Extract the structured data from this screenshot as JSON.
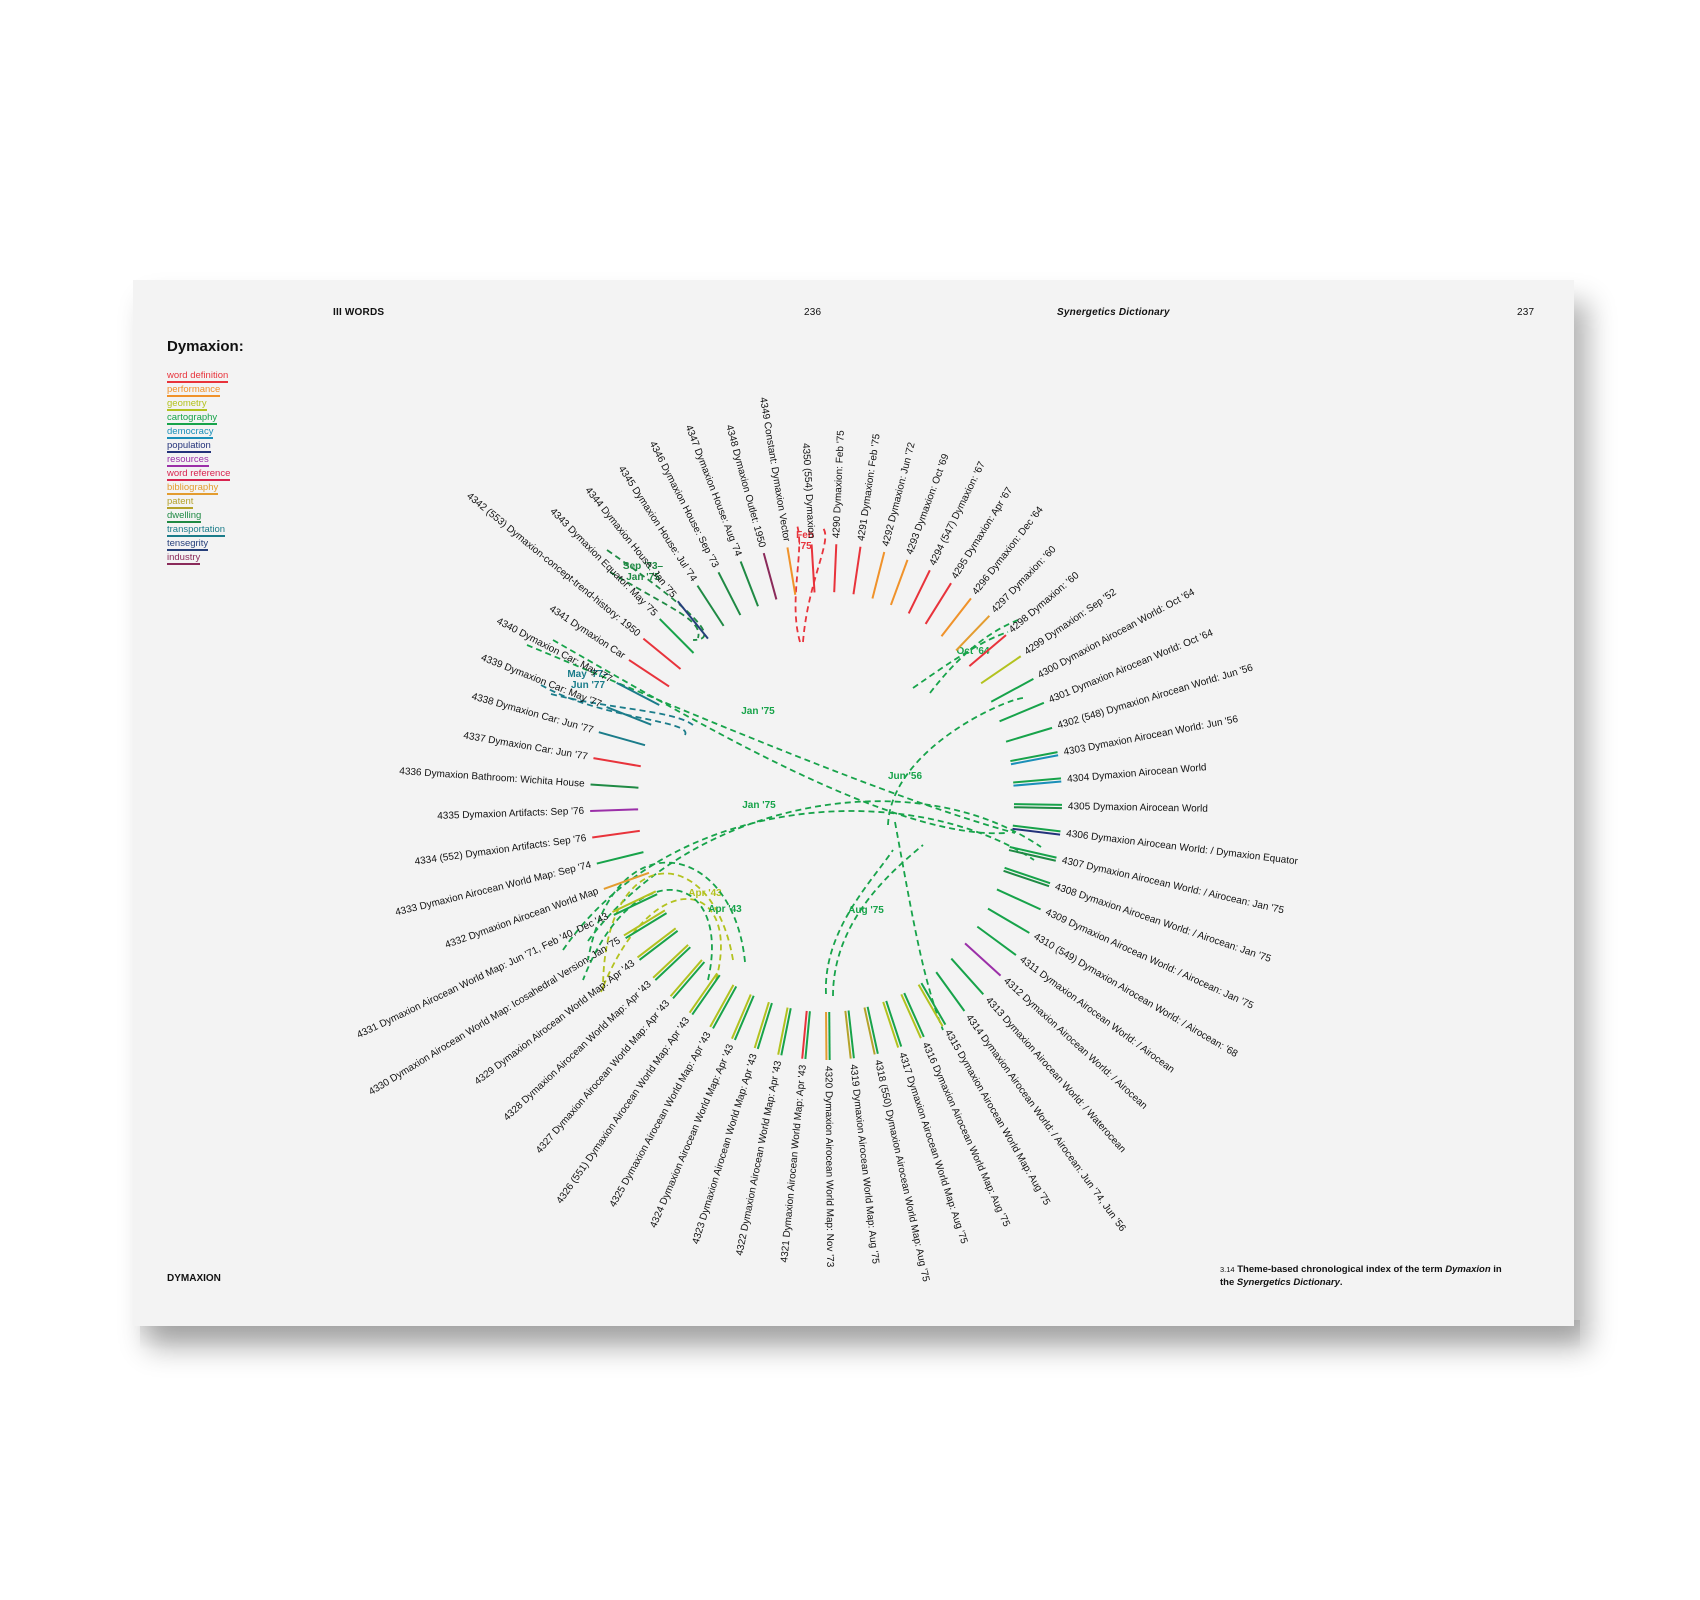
{
  "header": {
    "section": "III  WORDS",
    "left_page_number": "236",
    "book_title": "Synergetics Dictionary",
    "right_page_number": "237"
  },
  "title": "Dymaxion:",
  "legend": [
    {
      "label": "word definition",
      "color": "#e8333b"
    },
    {
      "label": "performance",
      "color": "#f0922a"
    },
    {
      "label": "geometry",
      "color": "#b3c21f"
    },
    {
      "label": "cartography",
      "color": "#17a34a"
    },
    {
      "label": "democracy",
      "color": "#1a8fb8"
    },
    {
      "label": "population",
      "color": "#23327a"
    },
    {
      "label": "resources",
      "color": "#9b2fa8"
    },
    {
      "label": "word reference",
      "color": "#d8244f"
    },
    {
      "label": "bibliography",
      "color": "#e39c2f"
    },
    {
      "label": "patent",
      "color": "#b5a22a"
    },
    {
      "label": "dwelling",
      "color": "#1f8a44"
    },
    {
      "label": "transportation",
      "color": "#1b7c8a"
    },
    {
      "label": "tensegrity",
      "color": "#263f7a"
    },
    {
      "label": "industry",
      "color": "#8a2a5a"
    }
  ],
  "footer": {
    "running_title": "DYMAXION",
    "caption_number": "3.14",
    "caption_pre": "Theme-based chronological index of the term ",
    "caption_term": "Dymaxion",
    "caption_mid": " in the ",
    "caption_book": "Synergetics Dictionary",
    "caption_end": "."
  },
  "entries": [
    {
      "label": "4290  Dymaxion: Feb '75",
      "colors": [
        "#e8333b"
      ]
    },
    {
      "label": "4291  Dymaxion: Feb '75",
      "colors": [
        "#e8333b"
      ]
    },
    {
      "label": "4292  Dymaxion: Jun '72",
      "colors": [
        "#f0922a"
      ]
    },
    {
      "label": "4293  Dymaxion: Oct '69",
      "colors": [
        "#f0922a"
      ]
    },
    {
      "label": "4294  (547) Dymaxion: '67",
      "colors": [
        "#e8333b"
      ]
    },
    {
      "label": "4295  Dymaxion: Apr '67",
      "colors": [
        "#e8333b"
      ]
    },
    {
      "label": "4296  Dymaxion: Dec '64",
      "colors": [
        "#f0922a"
      ]
    },
    {
      "label": "4297  Dymaxion: '60",
      "colors": [
        "#e39c2f"
      ]
    },
    {
      "label": "4298  Dymaxion: '60",
      "colors": [
        "#e8333b"
      ]
    },
    {
      "label": "4299  Dymaxion: Sep '52",
      "colors": [
        "#b3c21f"
      ]
    },
    {
      "label": "4300  Dymaxion Airocean World: Oct '64",
      "colors": [
        "#17a34a"
      ]
    },
    {
      "label": "4301  Dymaxion Airocean World: Oct '64",
      "colors": [
        "#17a34a"
      ]
    },
    {
      "label": "4302  (548) Dymaxion Airocean World: Jun '56",
      "colors": [
        "#17a34a"
      ]
    },
    {
      "label": "4303  Dymaxion Airocean World: Jun '56",
      "colors": [
        "#17a34a",
        "#1a8fb8"
      ]
    },
    {
      "label": "4304  Dymaxion Airocean World",
      "colors": [
        "#17a34a",
        "#1a8fb8"
      ]
    },
    {
      "label": "4305  Dymaxion Airocean World",
      "colors": [
        "#17a34a",
        "#1f8a44"
      ]
    },
    {
      "label": "4306  Dymaxion Airocean World: / Dymaxion Equator",
      "colors": [
        "#17a34a",
        "#23327a"
      ]
    },
    {
      "label": "4307  Dymaxion Airocean World: / Airocean: Jan '75",
      "colors": [
        "#17a34a",
        "#1f8a44"
      ]
    },
    {
      "label": "4308  Dymaxion Airocean World: / Airocean: Jan '75",
      "colors": [
        "#17a34a",
        "#1f8a44"
      ]
    },
    {
      "label": "4309  Dymaxion Airocean World: / Airocean: Jan '75",
      "colors": [
        "#17a34a"
      ]
    },
    {
      "label": "4310  (549) Dymaxion Airocean World: / Airocean: '68",
      "colors": [
        "#17a34a"
      ]
    },
    {
      "label": "4311  Dymaxion Airocean World: / Airocean",
      "colors": [
        "#17a34a"
      ]
    },
    {
      "label": "4312  Dymaxion Airocean World: / Airocean",
      "colors": [
        "#9b2fa8"
      ]
    },
    {
      "label": "4313  Dymaxion Airocean World: / Waterocean",
      "colors": [
        "#17a34a"
      ]
    },
    {
      "label": "4314  Dymaxion Airocean World: / Airocean: Jun '74, Jun '56",
      "colors": [
        "#17a34a"
      ]
    },
    {
      "label": "4315  Dymaxion Airocean World Map: Aug '75",
      "colors": [
        "#17a34a",
        "#b3c21f"
      ]
    },
    {
      "label": "4316  Dymaxion Airocean World Map:  Aug '75",
      "colors": [
        "#17a34a",
        "#b3c21f"
      ]
    },
    {
      "label": "4317  Dymaxion Airocean World Map: Aug '75",
      "colors": [
        "#17a34a",
        "#b3c21f"
      ]
    },
    {
      "label": "4318  (550) Dymaxion Airocean World Map: Aug '75",
      "colors": [
        "#17a34a",
        "#b5a22a"
      ]
    },
    {
      "label": "4319  Dymaxion Airocean World Map: Aug '75",
      "colors": [
        "#17a34a",
        "#b5a22a"
      ]
    },
    {
      "label": "4320  Dymaxion Airocean World Map: Nov '73",
      "colors": [
        "#17a34a",
        "#e39c2f"
      ]
    },
    {
      "label": "4321  Dymaxion Airocean World Map: Apr '43",
      "colors": [
        "#17a34a",
        "#e8333b"
      ]
    },
    {
      "label": "4322  Dymaxion Airocean World Map: Apr '43",
      "colors": [
        "#17a34a",
        "#b3c21f"
      ]
    },
    {
      "label": "4323  Dymaxion Airocean World Map: Apr '43",
      "colors": [
        "#17a34a",
        "#b3c21f"
      ]
    },
    {
      "label": "4324  Dymaxion Airocean World Map: Apr '43",
      "colors": [
        "#17a34a",
        "#b3c21f"
      ]
    },
    {
      "label": "4325  Dymaxion Airocean World Map: Apr '43",
      "colors": [
        "#17a34a",
        "#b3c21f"
      ]
    },
    {
      "label": "4326  (551) Dymaxion Airocean World Map: Apr '43",
      "colors": [
        "#17a34a",
        "#b3c21f"
      ]
    },
    {
      "label": "4327  Dymaxion Airocean World Map: Apr '43",
      "colors": [
        "#17a34a",
        "#b3c21f"
      ]
    },
    {
      "label": "4328  Dymaxion Airocean World Map: Apr '43",
      "colors": [
        "#17a34a",
        "#b3c21f"
      ]
    },
    {
      "label": "4329  Dymaxion Airocean World Map: Apr '43",
      "colors": [
        "#17a34a",
        "#b3c21f"
      ]
    },
    {
      "label": "4330  Dymaxion Airocean World Map: Icosahedral Version: Jan '75",
      "colors": [
        "#17a34a",
        "#b3c21f"
      ]
    },
    {
      "label": "4331  Dymaxion Airocean World Map: Jun '71, Feb '40, Dec '43",
      "colors": [
        "#17a34a",
        "#b3c21f"
      ]
    },
    {
      "label": "4332  Dymaxion Airocean World Map",
      "colors": [
        "#e39c2f"
      ]
    },
    {
      "label": "4333  Dymaxion Airocean World Map: Sep '74",
      "colors": [
        "#17a34a"
      ]
    },
    {
      "label": "4334  (552) Dymaxion Artifacts: Sep '76",
      "colors": [
        "#e8333b"
      ]
    },
    {
      "label": "4335  Dymaxion Artifacts: Sep '76",
      "colors": [
        "#9b2fa8"
      ]
    },
    {
      "label": "4336  Dymaxion Bathroom: Wichita House",
      "colors": [
        "#1f8a44"
      ]
    },
    {
      "label": "4337  Dymaxion Car: Jun '77",
      "colors": [
        "#e8333b"
      ]
    },
    {
      "label": "4338  Dymaxion Car: Jun '77",
      "colors": [
        "#1b7c8a"
      ]
    },
    {
      "label": "4339  Dymaxion Car: May '77",
      "colors": [
        "#1b7c8a"
      ]
    },
    {
      "label": "4340  Dymaxion Car: May '77",
      "colors": [
        "#1b7c8a"
      ]
    },
    {
      "label": "4341  Dymaxion Car",
      "colors": [
        "#e8333b"
      ]
    },
    {
      "label": "4342  (553) Dymaxion-concept-trend-history: 1950",
      "colors": [
        "#e8333b"
      ]
    },
    {
      "label": "4343  Dymaxion Equator: May '75",
      "colors": [
        "#17a34a"
      ]
    },
    {
      "label": "4344  Dymaxion House: Jan '75",
      "colors": [
        "#263f7a"
      ]
    },
    {
      "label": "4345  Dymaxion House: Jul '74",
      "colors": [
        "#1f8a44"
      ]
    },
    {
      "label": "4346  Dymaxion House: Sep '73",
      "colors": [
        "#1f8a44"
      ]
    },
    {
      "label": "4347  Dymaxion House: Aug '74",
      "colors": [
        "#1f8a44"
      ]
    },
    {
      "label": "4348  Dymaxion Outlet: 1950",
      "colors": [
        "#8a2a5a"
      ]
    },
    {
      "label": "4349  Constant: Dymaxion Vector",
      "colors": [
        "#f0922a"
      ]
    },
    {
      "label": "4350  (554) Dymaxion",
      "colors": [
        "#e8333b"
      ]
    }
  ],
  "connections": [
    {
      "label": "Feb\n'75",
      "color": "#e8333b"
    },
    {
      "label": "Oct '64",
      "color": "#17a34a"
    },
    {
      "label": "Jun '56",
      "color": "#17a34a"
    },
    {
      "label": "Jan '75",
      "color": "#17a34a"
    },
    {
      "label": "Jan '75",
      "color": "#17a34a"
    },
    {
      "label": "Aug '75",
      "color": "#17a34a"
    },
    {
      "label": "Apr '43",
      "color": "#b3c21f"
    },
    {
      "label": "Apr '43",
      "color": "#17a34a"
    },
    {
      "label": "May '77–\nJun '77",
      "color": "#1b7c8a"
    },
    {
      "label": "Sep '73–\nJan '75",
      "color": "#1f8a44"
    }
  ]
}
